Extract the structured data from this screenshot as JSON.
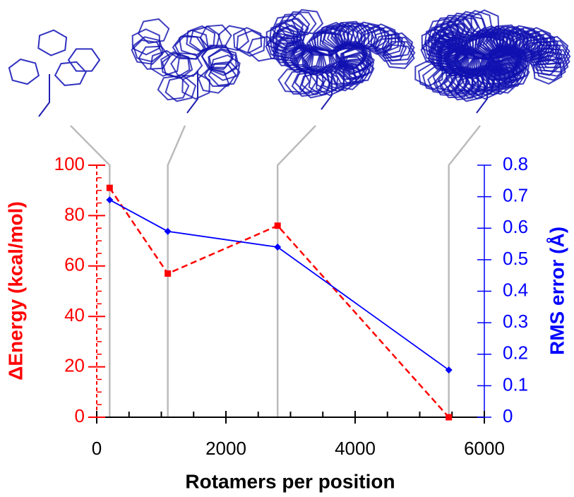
{
  "chart_data": {
    "type": "line",
    "x_label": "Rotamers per position",
    "y_label": "ΔEnergy (kcal/mol)",
    "y2_label": "RMS error (Å)",
    "x": [
      200,
      1100,
      2800,
      5450
    ],
    "series": [
      {
        "color": "#ff0000",
        "values": [
          91,
          57,
          76,
          0
        ],
        "axis": "y",
        "dashed": true,
        "marker": "square"
      },
      {
        "color": "#0000ff",
        "values": [
          0.69,
          0.59,
          0.54,
          0.15
        ],
        "axis": "y2",
        "dashed": false,
        "marker": "diamond"
      }
    ],
    "xlim": [
      0,
      6000
    ],
    "xticks": [
      0,
      2000,
      4000,
      6000
    ],
    "xminorticks": [
      500,
      1000,
      1500,
      2500,
      3000,
      3500,
      4500,
      5000,
      5500
    ],
    "ylim": [
      0,
      100
    ],
    "yticks": [
      0,
      20,
      40,
      60,
      80,
      100
    ],
    "yminorticks": [
      5,
      10,
      15,
      25,
      30,
      35,
      45,
      50,
      55,
      65,
      70,
      75,
      85,
      90,
      95
    ],
    "y2lim": [
      0,
      0.8
    ],
    "y2ticks": [
      0,
      0.1,
      0.2,
      0.3,
      0.4,
      0.5,
      0.6,
      0.7,
      0.8
    ],
    "y_color": "#ff0000",
    "y2_color": "#0000ff"
  }
}
